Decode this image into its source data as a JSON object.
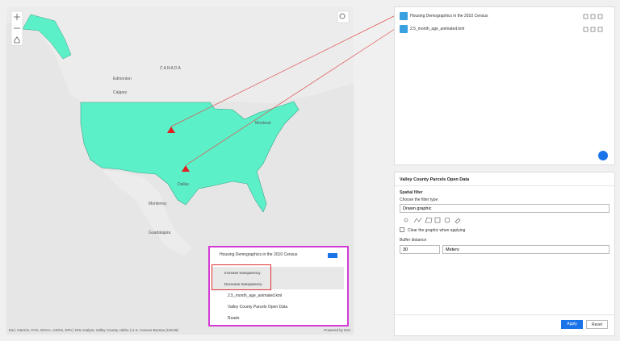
{
  "map": {
    "labels": [
      "CANADA",
      "Edmonton",
      "Calgary",
      "Montreal",
      "Dallas",
      "Monterrey",
      "Guadalajara"
    ],
    "attribution": "Esri, Garmin, FAO, NOAA, USGS, EPA | GIS Analyst, Valley County, Idaho | U.S. Census Bureau (USCB)",
    "powered_by": "Powered by Esri"
  },
  "layer_list": {
    "items": [
      {
        "title": "Housing Demographics in the 2010 Census",
        "actions": [
          "Increase transparency",
          "Decrease transparency"
        ]
      },
      {
        "title": "2.5_month_age_animated.kml"
      },
      {
        "title": "Valley County Parcels Open Data"
      },
      {
        "title": "Roads"
      }
    ]
  },
  "layers_panel": {
    "items": [
      "Housing Demographics in the 2010 Census",
      "2.5_month_age_animated.kml"
    ]
  },
  "filter_panel": {
    "title": "Valley County Parcels Open Data",
    "section": "Spatial filter",
    "filter_type_label": "Choose the filter type",
    "filter_type": "Drawn graphic",
    "checkbox_label": "Clear the graphic when applying",
    "buffer_label": "Buffer distance",
    "buffer_value": 30,
    "buffer_unit": "Meters",
    "apply": "Apply",
    "reset": "Reset"
  }
}
